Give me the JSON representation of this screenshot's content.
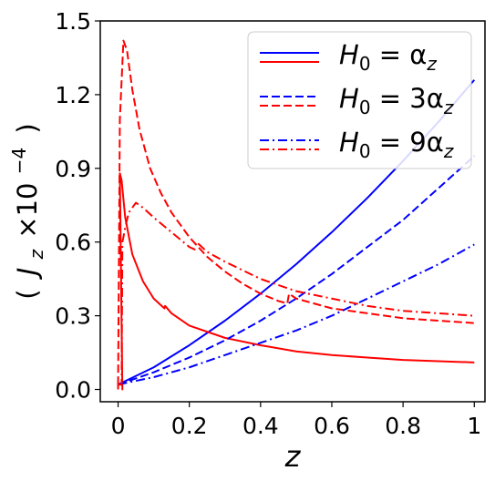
{
  "chart_data": {
    "type": "line",
    "xlabel": "z",
    "ylabel": "( J_z × 10^−4 )",
    "ylabel_parts": {
      "open": "(",
      "main": "J",
      "sub": "z",
      "times": "×10",
      "exp": "−4",
      "close": ")"
    },
    "xlim": [
      -0.05,
      1.03
    ],
    "ylim": [
      -0.05,
      1.5
    ],
    "xticks": [
      0,
      0.2,
      0.4,
      0.6,
      0.8,
      1
    ],
    "xtick_labels": [
      "0",
      "0.2",
      "0.4",
      "0.6",
      "0.8",
      "1"
    ],
    "yticks": [
      0.0,
      0.3,
      0.6,
      0.9,
      1.2,
      1.5
    ],
    "ytick_labels": [
      "0.0",
      "0.3",
      "0.6",
      "0.9",
      "1.2",
      "1.5"
    ],
    "grid": false,
    "legend_position": "top-right",
    "legend": [
      {
        "label": "H_0 = α_z",
        "main": "H",
        "sub": "0",
        "rest": " = α",
        "sub2": "z",
        "style": "solid"
      },
      {
        "label": "H_0 = 3α_z",
        "main": "H",
        "sub": "0",
        "rest": " = 3α",
        "sub2": "z",
        "style": "dashed"
      },
      {
        "label": "H_0 = 9α_z",
        "main": "H",
        "sub": "0",
        "rest": " = 9α",
        "sub2": "z",
        "style": "dashdot"
      }
    ],
    "colors": {
      "blue": "#0000ff",
      "red": "#ff0000"
    },
    "series": [
      {
        "group": "H_0 = α_z",
        "color": "blue",
        "style": "solid",
        "x": [
          0.0,
          0.1,
          0.2,
          0.3,
          0.4,
          0.5,
          0.6,
          0.7,
          0.8,
          0.9,
          1.0
        ],
        "y": [
          0.02,
          0.09,
          0.18,
          0.28,
          0.39,
          0.51,
          0.64,
          0.78,
          0.93,
          1.09,
          1.26
        ]
      },
      {
        "group": "H_0 = α_z",
        "color": "red",
        "style": "solid",
        "x": [
          0.0,
          0.0,
          0.012,
          0.012,
          0.005,
          0.01,
          0.02,
          0.04,
          0.07,
          0.1,
          0.13,
          0.132,
          0.15,
          0.2,
          0.3,
          0.4,
          0.5,
          0.6,
          0.7,
          0.8,
          0.9,
          1.0
        ],
        "y": [
          0.0,
          0.02,
          0.02,
          0.0,
          0.88,
          0.85,
          0.7,
          0.55,
          0.44,
          0.37,
          0.33,
          0.34,
          0.31,
          0.26,
          0.21,
          0.18,
          0.155,
          0.14,
          0.13,
          0.12,
          0.115,
          0.11
        ]
      },
      {
        "group": "H_0 = 3α_z",
        "color": "blue",
        "style": "dashed",
        "x": [
          0.0,
          0.1,
          0.2,
          0.3,
          0.4,
          0.5,
          0.6,
          0.7,
          0.8,
          0.9,
          1.0
        ],
        "y": [
          0.02,
          0.07,
          0.13,
          0.2,
          0.28,
          0.37,
          0.47,
          0.58,
          0.69,
          0.82,
          0.95
        ]
      },
      {
        "group": "H_0 = 3α_z",
        "color": "red",
        "style": "dashed",
        "x": [
          0.0,
          0.005,
          0.015,
          0.025,
          0.04,
          0.06,
          0.09,
          0.12,
          0.15,
          0.2,
          0.25,
          0.3,
          0.35,
          0.4,
          0.45,
          0.475,
          0.48,
          0.5,
          0.6,
          0.7,
          0.8,
          0.9,
          1.0
        ],
        "y": [
          0.02,
          1.1,
          1.42,
          1.38,
          1.22,
          1.06,
          0.9,
          0.8,
          0.72,
          0.62,
          0.54,
          0.48,
          0.43,
          0.39,
          0.36,
          0.35,
          0.39,
          0.37,
          0.33,
          0.31,
          0.29,
          0.28,
          0.27
        ]
      },
      {
        "group": "H_0 = 9α_z",
        "color": "blue",
        "style": "dashdot",
        "x": [
          0.0,
          0.1,
          0.2,
          0.3,
          0.4,
          0.5,
          0.6,
          0.7,
          0.8,
          0.9,
          1.0
        ],
        "y": [
          0.02,
          0.05,
          0.09,
          0.14,
          0.19,
          0.24,
          0.3,
          0.37,
          0.44,
          0.51,
          0.59
        ]
      },
      {
        "group": "H_0 = 9α_z",
        "color": "red",
        "style": "dashdot",
        "x": [
          0.0,
          0.01,
          0.012,
          0.015,
          0.02,
          0.03,
          0.05,
          0.07,
          0.1,
          0.15,
          0.2,
          0.215,
          0.22,
          0.25,
          0.3,
          0.4,
          0.5,
          0.6,
          0.7,
          0.8,
          0.9,
          1.0
        ],
        "y": [
          0.02,
          0.02,
          0.6,
          0.62,
          0.66,
          0.72,
          0.76,
          0.74,
          0.7,
          0.64,
          0.58,
          0.57,
          0.6,
          0.56,
          0.52,
          0.45,
          0.4,
          0.37,
          0.34,
          0.32,
          0.31,
          0.3
        ]
      }
    ]
  }
}
